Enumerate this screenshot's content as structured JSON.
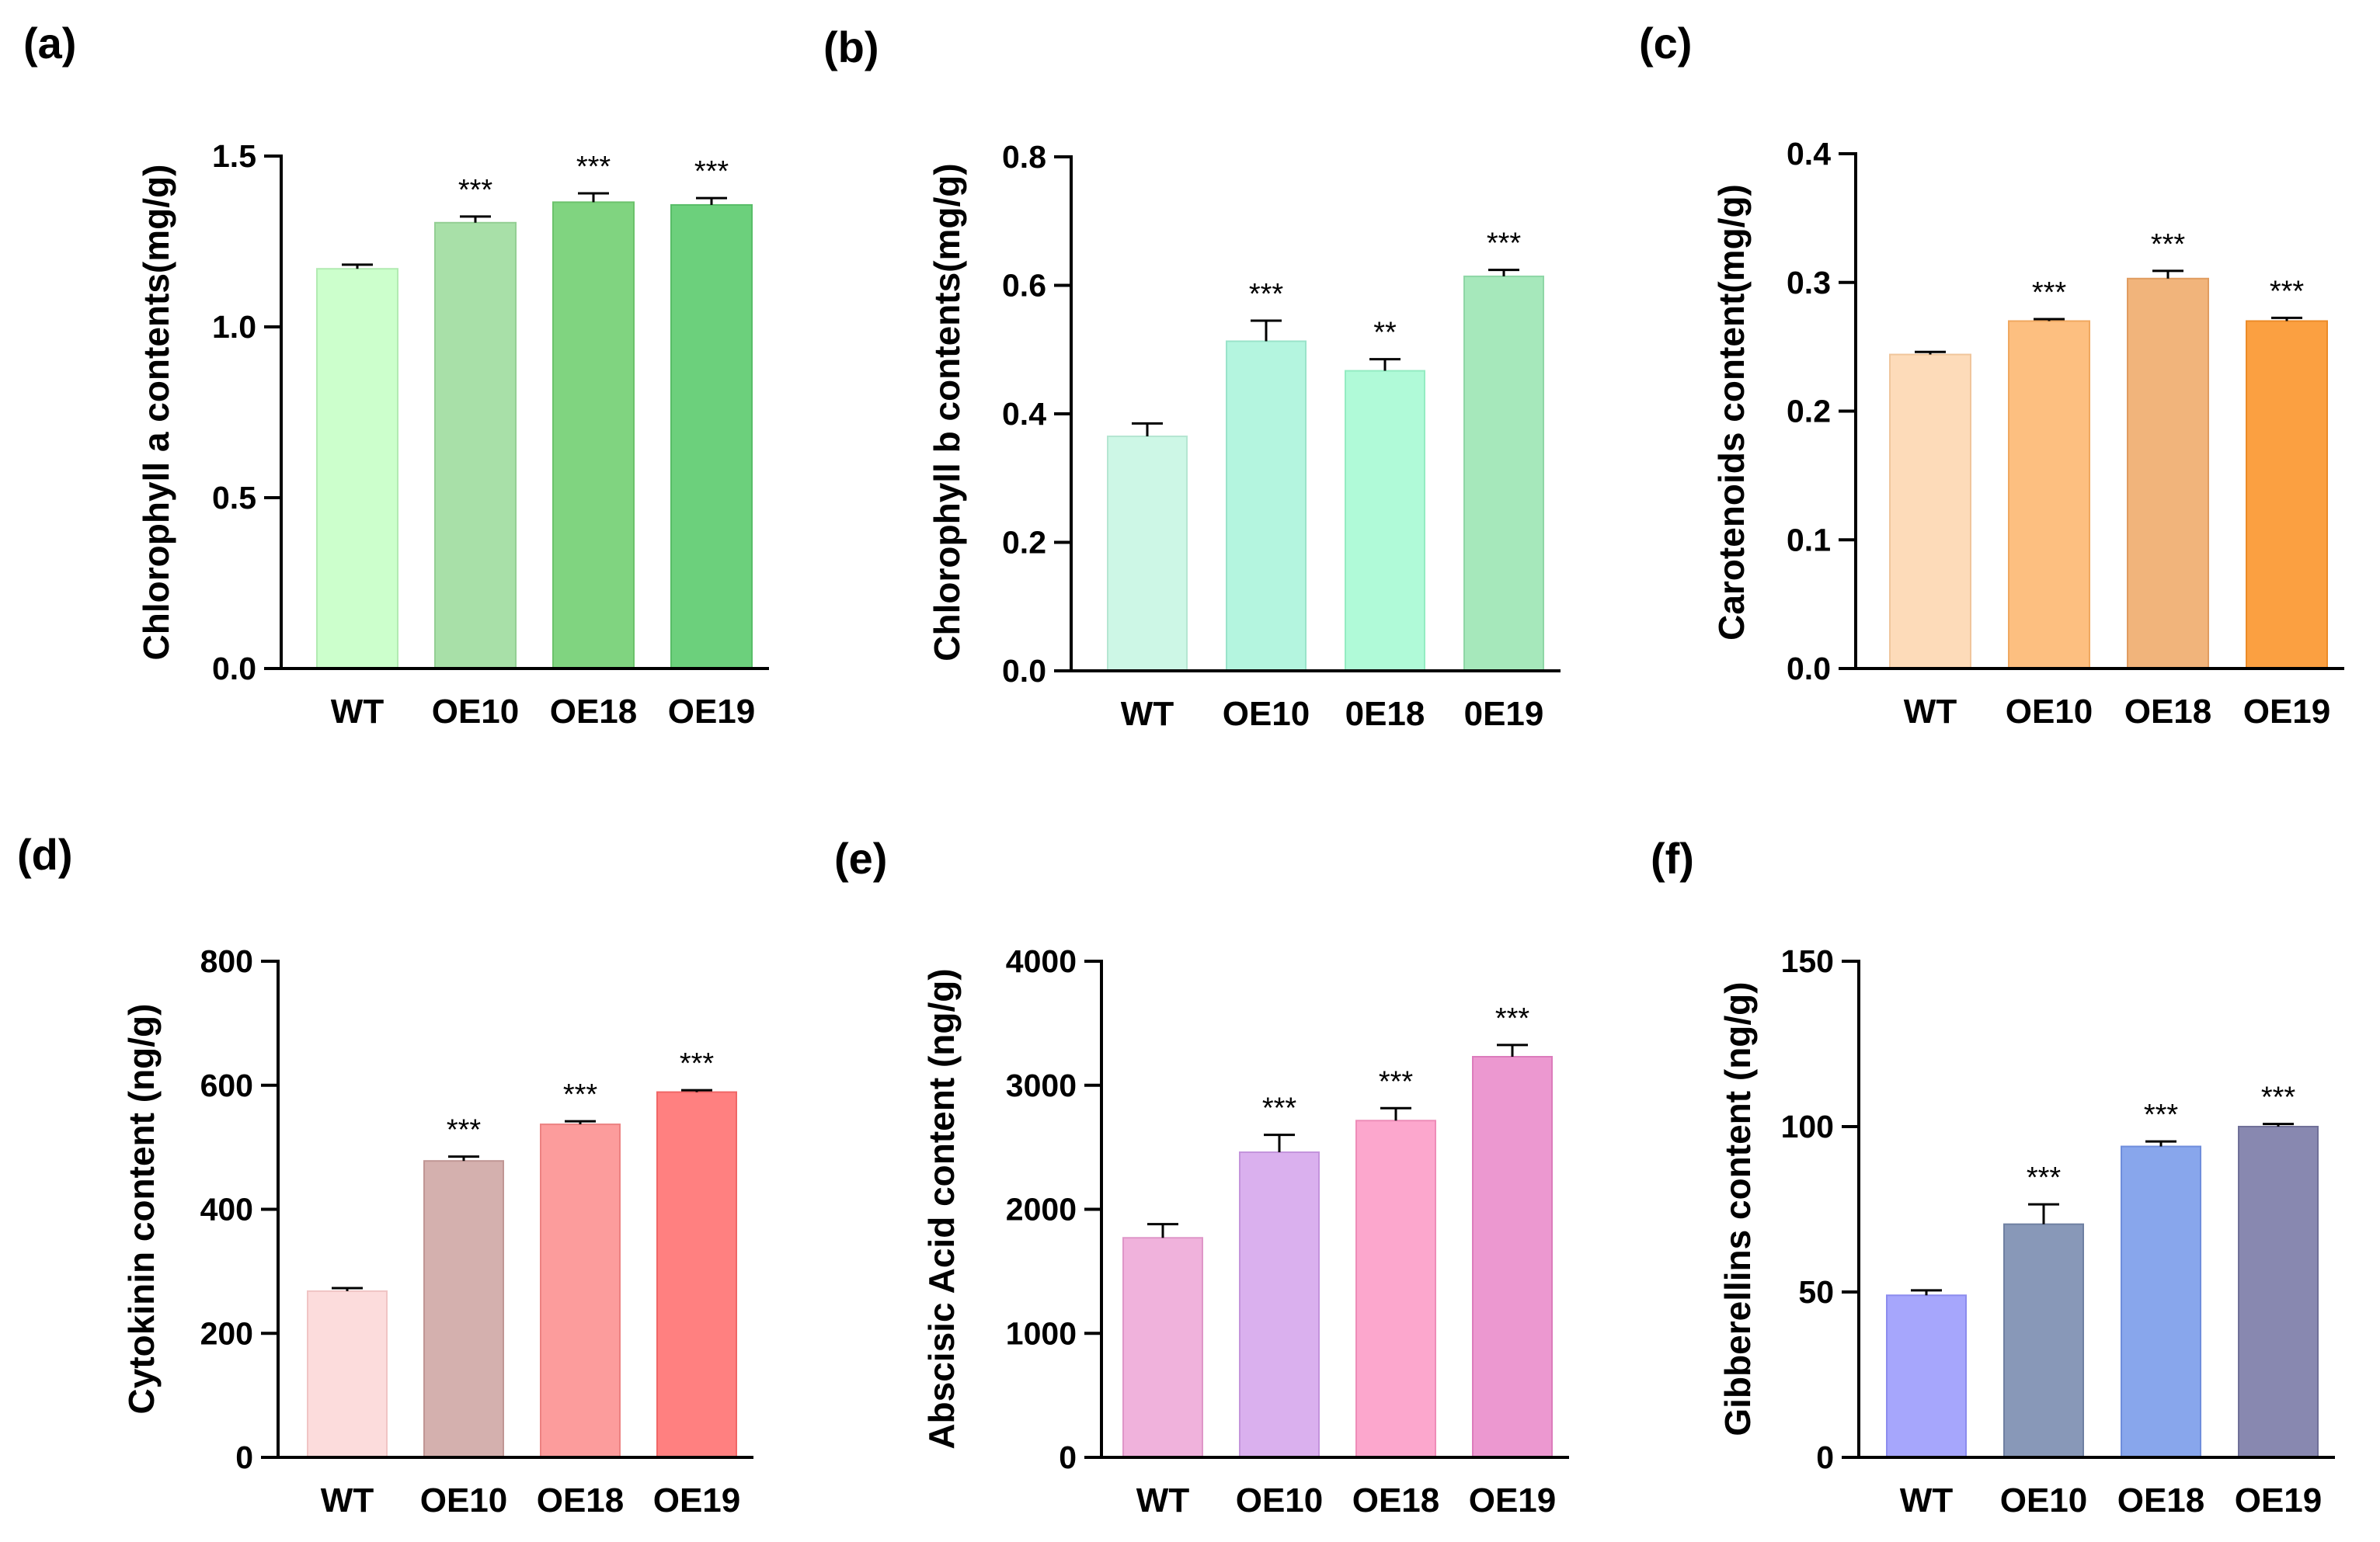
{
  "chart_data": [
    {
      "panel": "(a)",
      "type": "bar",
      "ylabel": "Chlorophyll a contents(mg/g)",
      "xlabel": "",
      "categories": [
        "WT",
        "OE10",
        "OE18",
        "OE19"
      ],
      "values": [
        1.17,
        1.305,
        1.365,
        1.357
      ],
      "errors": [
        0.012,
        0.018,
        0.026,
        0.02
      ],
      "significance": [
        "",
        "***",
        "***",
        "***"
      ],
      "ylim": [
        0,
        1.5
      ],
      "yticks": [
        0.0,
        0.5,
        1.0,
        1.5
      ],
      "ytick_labels": [
        "0.0",
        "0.5",
        "1.0",
        "1.5"
      ],
      "colors": [
        "#ccffcc",
        "#a8e0a8",
        "#80d480",
        "#6cd07c"
      ],
      "stroke_colors": [
        "#b2ebb2",
        "#94cf94",
        "#6bc26b",
        "#58bd68"
      ]
    },
    {
      "panel": "(b)",
      "type": "bar",
      "ylabel": "Chlorophyll b contents(mg/g)",
      "xlabel": "",
      "categories": [
        "WT",
        "OE10",
        "0E18",
        "0E19"
      ],
      "values": [
        0.365,
        0.513,
        0.467,
        0.614
      ],
      "errors": [
        0.02,
        0.032,
        0.018,
        0.01
      ],
      "significance": [
        "",
        "***",
        "**",
        "***"
      ],
      "ylim": [
        0,
        0.8
      ],
      "yticks": [
        0.0,
        0.2,
        0.4,
        0.6,
        0.8
      ],
      "ytick_labels": [
        "0.0",
        "0.2",
        "0.4",
        "0.6",
        "0.8"
      ],
      "colors": [
        "#cdf7e6",
        "#b4f5df",
        "#b0fad8",
        "#a6e8bb"
      ],
      "stroke_colors": [
        "#b5e6d2",
        "#9ae3ca",
        "#94ecc2",
        "#8fd6a6"
      ]
    },
    {
      "panel": "(c)",
      "type": "bar",
      "ylabel": "Carotenoids content(mg/g)",
      "xlabel": "",
      "categories": [
        "WT",
        "OE10",
        "OE18",
        "OE19"
      ],
      "values": [
        0.244,
        0.27,
        0.303,
        0.27
      ],
      "errors": [
        0.002,
        0.0015,
        0.006,
        0.0025
      ],
      "significance": [
        "",
        "***",
        "***",
        "***"
      ],
      "ylim": [
        0,
        0.4
      ],
      "yticks": [
        0.0,
        0.1,
        0.2,
        0.3,
        0.4
      ],
      "ytick_labels": [
        "0.0",
        "0.1",
        "0.2",
        "0.3",
        "0.4"
      ],
      "colors": [
        "#fddbb9",
        "#fdbf80",
        "#f1b47b",
        "#fba041"
      ],
      "stroke_colors": [
        "#f0c69c",
        "#f0a860",
        "#e09c60",
        "#ec8b28"
      ]
    },
    {
      "panel": "(d)",
      "type": "bar",
      "ylabel": "Cytokinin content (ng/g)",
      "xlabel": "",
      "categories": [
        "WT",
        "OE10",
        "OE18",
        "OE19"
      ],
      "values": [
        268,
        478,
        537,
        589
      ],
      "errors": [
        5,
        7,
        5,
        3
      ],
      "significance": [
        "",
        "***",
        "***",
        "***"
      ],
      "ylim": [
        0,
        800
      ],
      "yticks": [
        0,
        200,
        400,
        600,
        800
      ],
      "ytick_labels": [
        "0",
        "200",
        "400",
        "600",
        "800"
      ],
      "colors": [
        "#fcdcdc",
        "#d4b0ae",
        "#fc9c9c",
        "#ff8080"
      ],
      "stroke_colors": [
        "#f0c4c4",
        "#c09694",
        "#ec8282",
        "#f06666"
      ]
    },
    {
      "panel": "(e)",
      "type": "bar",
      "ylabel": "Abscisic Acid content (ng/g)",
      "xlabel": "",
      "categories": [
        "WT",
        "OE10",
        "OE18",
        "OE19"
      ],
      "values": [
        1770,
        2460,
        2715,
        3230
      ],
      "errors": [
        110,
        140,
        100,
        95
      ],
      "significance": [
        "",
        "***",
        "***",
        "***"
      ],
      "ylim": [
        0,
        4000
      ],
      "yticks": [
        0,
        1000,
        2000,
        3000,
        4000
      ],
      "ytick_labels": [
        "0",
        "1000",
        "2000",
        "3000",
        "4000"
      ],
      "colors": [
        "#f0b2dc",
        "#dab0ee",
        "#fca7cd",
        "#ec98d0"
      ],
      "stroke_colors": [
        "#df96c8",
        "#c494dc",
        "#ee8cb8",
        "#dc7cbc"
      ]
    },
    {
      "panel": "(f)",
      "type": "bar",
      "ylabel": "Gibberellins content (ng/g)",
      "xlabel": "",
      "categories": [
        "WT",
        "OE10",
        "OE18",
        "OE19"
      ],
      "values": [
        49,
        70.5,
        94,
        100
      ],
      "errors": [
        1.5,
        6,
        1.5,
        0.8
      ],
      "significance": [
        "",
        "***",
        "***",
        "***"
      ],
      "ylim": [
        0,
        150
      ],
      "yticks": [
        0,
        50,
        100,
        150
      ],
      "ytick_labels": [
        "0",
        "50",
        "100",
        "150"
      ],
      "colors": [
        "#a6a6fc",
        "#8898b8",
        "#88a6ec",
        "#8888b0"
      ],
      "stroke_colors": [
        "#8c8cee",
        "#6f80a2",
        "#6f8edc",
        "#707098"
      ]
    }
  ]
}
